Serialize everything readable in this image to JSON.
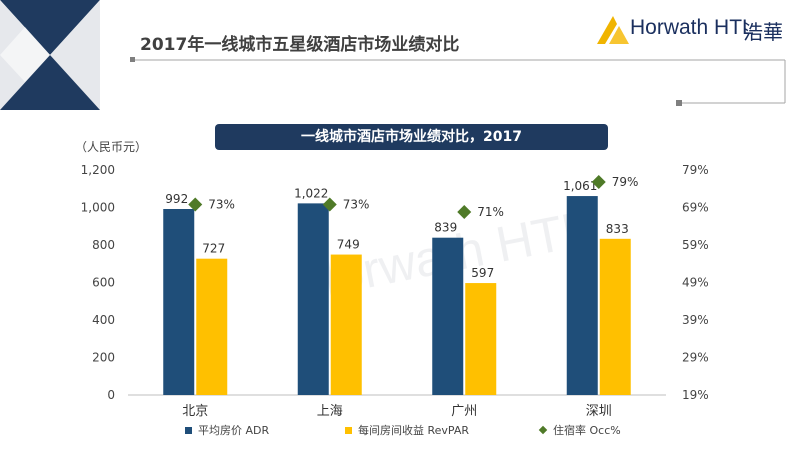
{
  "header": {
    "slide_title": "2017年一线城市五星级酒店市场业绩对比",
    "logo_text": "Horwath HTL",
    "logo_cn": "浩華",
    "watermark": "Horwath HTL"
  },
  "colors": {
    "adr": "#1f4e79",
    "revpar": "#ffc000",
    "occ": "#4f7a28",
    "banner": "#1f3a5f",
    "corner_dark": "#1f3a5f"
  },
  "chart_data": {
    "type": "bar",
    "title": "一线城市酒店市场业绩对比，2017",
    "ylabel": "（人民币元）",
    "categories": [
      "北京",
      "上海",
      "广州",
      "深圳"
    ],
    "ylim": [
      0,
      1200
    ],
    "y_ticks": [
      "0",
      "200",
      "400",
      "600",
      "800",
      "1,000",
      "1,200"
    ],
    "y2lim": [
      19,
      79
    ],
    "y2_ticks": [
      "19%",
      "29%",
      "39%",
      "49%",
      "59%",
      "69%",
      "79%"
    ],
    "series": [
      {
        "name": "平均房价 ADR",
        "type": "bar",
        "values": [
          992,
          1022,
          839,
          1061
        ],
        "labels": [
          "992",
          "1,022",
          "839",
          "1,061"
        ]
      },
      {
        "name": "每间房间收益 RevPAR",
        "type": "bar",
        "values": [
          727,
          749,
          597,
          833
        ],
        "labels": [
          "727",
          "749",
          "597",
          "833"
        ]
      },
      {
        "name": "住宿率 Occ%",
        "type": "scatter",
        "axis": "right",
        "values": [
          73,
          73,
          71,
          79
        ],
        "labels": [
          "73%",
          "73%",
          "71%",
          "79%"
        ]
      }
    ],
    "legend": "bottom",
    "grid": false
  }
}
